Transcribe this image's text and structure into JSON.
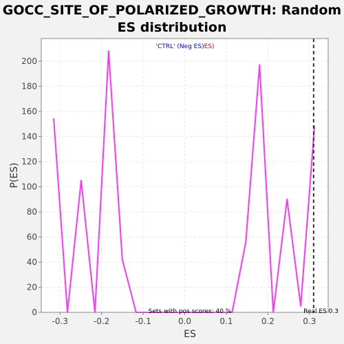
{
  "chart_data": {
    "type": "line",
    "title_line1": "GOCC_SITE_OF_POLARIZED_GROWTH: Random",
    "title_line2": "ES distribution",
    "xlabel": "ES",
    "ylabel": "P(ES)",
    "xlim": [
      -0.345,
      0.345
    ],
    "ylim": [
      0,
      218
    ],
    "x_ticks": [
      -0.3,
      -0.2,
      -0.1,
      0.0,
      0.1,
      0.2,
      0.3
    ],
    "x_tick_labels": [
      "-0.3",
      "-0.2",
      "-0.1",
      "0.0",
      "0.1",
      "0.2",
      "0.3"
    ],
    "y_ticks": [
      0,
      20,
      40,
      60,
      80,
      100,
      120,
      140,
      160,
      180,
      200
    ],
    "y_tick_labels": [
      "0",
      "20",
      "40",
      "60",
      "80",
      "100",
      "120",
      "140",
      "160",
      "180",
      "200"
    ],
    "grid": true,
    "legend": {
      "placement": "top-center",
      "part1": "'CTRL' (Neg ES)",
      "part2": "ES)",
      "color1": "#0000cc",
      "color2": "#cc0000"
    },
    "series": [
      {
        "color": "#ff33ff",
        "x": [
          -0.315,
          -0.282,
          -0.249,
          -0.216,
          -0.183,
          -0.15,
          -0.117,
          -0.084,
          -0.051,
          -0.018,
          0.015,
          0.048,
          0.081,
          0.114,
          0.147,
          0.18,
          0.213,
          0.246,
          0.279,
          0.312
        ],
        "y": [
          154,
          0,
          105,
          0,
          208,
          42,
          0,
          0,
          0,
          0,
          0,
          0,
          0,
          0,
          56,
          197,
          0,
          90,
          5,
          148
        ]
      }
    ],
    "real_es": {
      "x": 0.31,
      "label": "Real ES 0.3",
      "color": "#333333"
    },
    "annotation": "Sets with pos scores: 40 %"
  },
  "colors": {
    "background": "#f2f2f2",
    "plot_background": "#ffffff",
    "line": "#ff33ff",
    "grid": "#e6e6e6"
  }
}
